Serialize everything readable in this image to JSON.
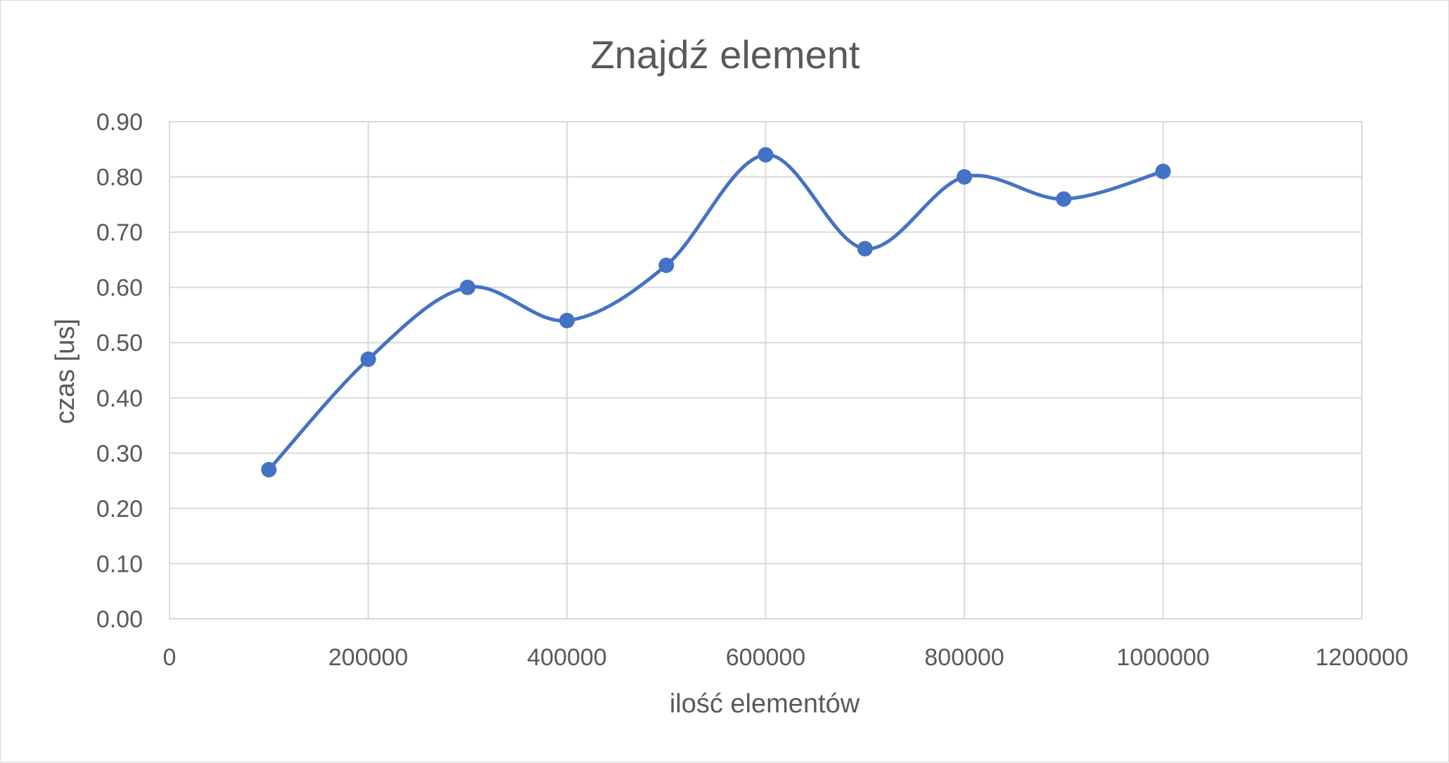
{
  "chart_data": {
    "type": "scatter",
    "title": "Znajdź element",
    "xlabel": "ilość elementów",
    "ylabel": "czas [us]",
    "xlim": [
      0,
      1200000
    ],
    "ylim": [
      0,
      0.9
    ],
    "xticks": [
      0,
      200000,
      400000,
      600000,
      800000,
      1000000,
      1200000
    ],
    "xtick_labels": [
      "0",
      "200000",
      "400000",
      "600000",
      "800000",
      "1000000",
      "1200000"
    ],
    "yticks": [
      0,
      0.1,
      0.2,
      0.3,
      0.4,
      0.5,
      0.6,
      0.7,
      0.8,
      0.9
    ],
    "ytick_labels": [
      "0.00",
      "0.10",
      "0.20",
      "0.30",
      "0.40",
      "0.50",
      "0.60",
      "0.70",
      "0.80",
      "0.90"
    ],
    "grid": true,
    "smooth_line": true,
    "series": [
      {
        "color": "#4472c4",
        "x": [
          100000,
          200000,
          300000,
          400000,
          500000,
          600000,
          700000,
          800000,
          900000,
          1000000
        ],
        "y": [
          0.27,
          0.47,
          0.6,
          0.54,
          0.64,
          0.84,
          0.67,
          0.8,
          0.76,
          0.81
        ]
      }
    ]
  }
}
